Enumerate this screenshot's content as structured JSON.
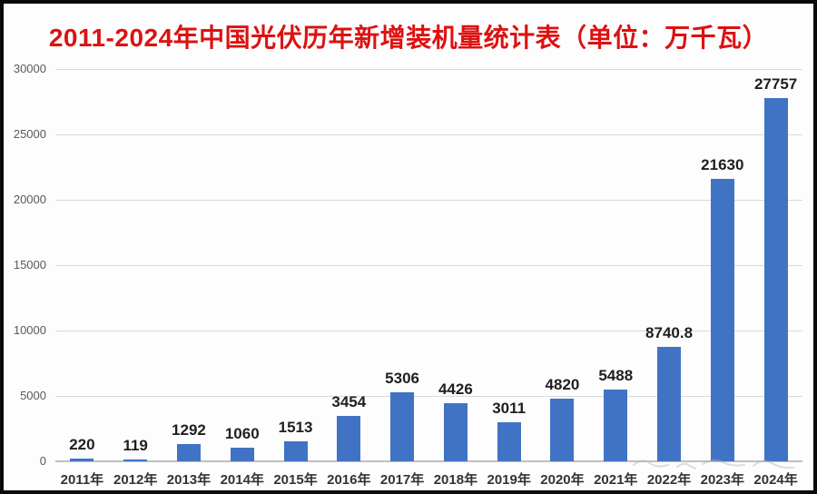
{
  "chart_data": {
    "type": "bar",
    "title": "2011-2024年中国光伏历年新增装机量统计表（单位：万千瓦）",
    "categories": [
      "2011年",
      "2012年",
      "2013年",
      "2014年",
      "2015年",
      "2016年",
      "2017年",
      "2018年",
      "2019年",
      "2020年",
      "2021年",
      "2022年",
      "2023年",
      "2024年"
    ],
    "values": [
      220,
      119,
      1292,
      1060,
      1513,
      3454,
      5306,
      4426,
      3011,
      4820,
      5488,
      8740.8,
      21630,
      27757
    ],
    "value_labels": [
      "220",
      "119",
      "1292",
      "1060",
      "1513",
      "3454",
      "5306",
      "4426",
      "3011",
      "4820",
      "5488",
      "8740.8",
      "21630",
      "27757"
    ],
    "xlabel": "",
    "ylabel": "",
    "ylim": [
      0,
      30000
    ],
    "ytick_interval": 5000,
    "ytick_labels": [
      "0",
      "5000",
      "10000",
      "15000",
      "20000",
      "25000",
      "30000"
    ],
    "grid": true,
    "legend": "none",
    "colors": {
      "bar": "#4173c4",
      "title": "#dd1111",
      "value_label": "#1f1f1f",
      "x_tick_label": "#333333",
      "y_tick_label": "#595959",
      "gridline": "#d9d9d9",
      "axis_line": "#bfbfbf"
    }
  }
}
